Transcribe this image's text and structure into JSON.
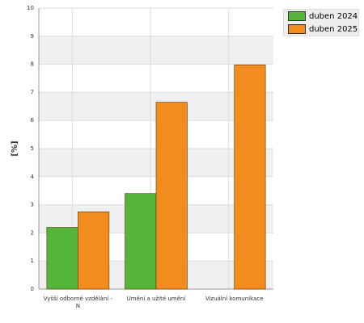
{
  "chart_data": {
    "type": "bar",
    "y_label": "[%]",
    "categories": [
      "Vyšší odborné vzdělání - N",
      "Umění a užité umění",
      "Vizuální komunikace"
    ],
    "series": [
      {
        "name": "duben 2024",
        "color": "#54b53a",
        "values": [
          2.2,
          3.4,
          null
        ]
      },
      {
        "name": "duben 2025",
        "color": "#f28c1e",
        "values": [
          2.75,
          6.65,
          7.98
        ]
      }
    ],
    "ylim": [
      0,
      10
    ],
    "yticks": [
      0,
      1,
      2,
      3,
      4,
      5,
      6,
      7,
      8,
      9,
      10
    ],
    "grid": true,
    "legend": "top-right"
  }
}
